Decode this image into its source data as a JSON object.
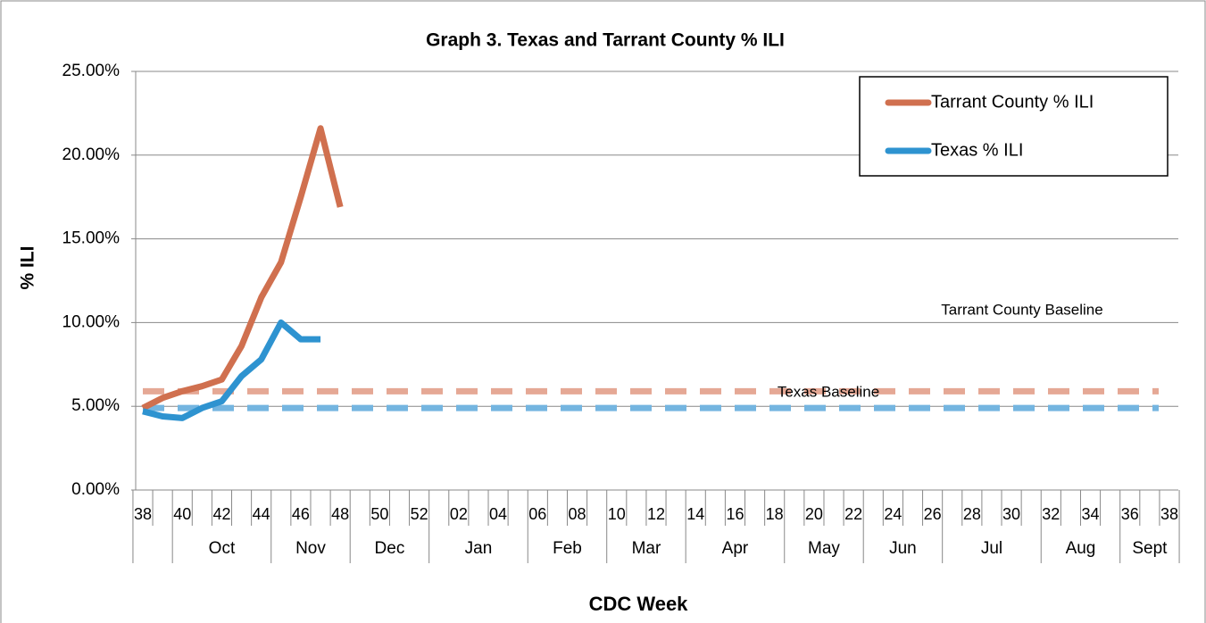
{
  "chart_data": {
    "type": "line",
    "title": "Graph 3. Texas and Tarrant County % ILI",
    "y_label": "% ILI",
    "x_label": "CDC Week",
    "categories": [
      "38",
      null,
      "40",
      null,
      "42",
      null,
      "44",
      null,
      "46",
      null,
      "48",
      null,
      "50",
      null,
      "52",
      null,
      "02",
      null,
      "04",
      null,
      "06",
      null,
      "08",
      null,
      "10",
      null,
      "12",
      null,
      "14",
      null,
      "16",
      null,
      "18",
      null,
      "20",
      null,
      "22",
      null,
      "24",
      null,
      "26",
      null,
      "28",
      null,
      "30",
      null,
      "32",
      null,
      "34",
      null,
      "36",
      null,
      "38"
    ],
    "months": [
      "Oct",
      "Nov",
      "Dec",
      "Jan",
      "Feb",
      "Mar",
      "Apr",
      "May",
      "Jun",
      "Jul",
      "Aug",
      "Sept"
    ],
    "series": [
      {
        "name": "Tarrant County % ILI",
        "color": "#d0704f",
        "values": [
          4.9,
          5.5,
          5.9,
          6.2,
          6.6,
          8.6,
          11.5,
          13.6,
          17.5,
          21.6,
          16.9,
          null,
          null,
          null,
          null,
          null,
          null,
          null,
          null,
          null,
          null,
          null,
          null,
          null,
          null,
          null,
          null,
          null,
          null,
          null,
          null,
          null,
          null,
          null,
          null,
          null,
          null,
          null,
          null,
          null,
          null,
          null,
          null,
          null,
          null,
          null,
          null,
          null,
          null,
          null,
          null,
          null,
          null
        ]
      },
      {
        "name": "Texas % ILI",
        "color": "#2e93d0",
        "values": [
          4.7,
          4.4,
          4.3,
          4.9,
          5.3,
          6.8,
          7.8,
          10.0,
          9.0,
          9.0,
          null,
          null,
          null,
          null,
          null,
          null,
          null,
          null,
          null,
          null,
          null,
          null,
          null,
          null,
          null,
          null,
          null,
          null,
          null,
          null,
          null,
          null,
          null,
          null,
          null,
          null,
          null,
          null,
          null,
          null,
          null,
          null,
          null,
          null,
          null,
          null,
          null,
          null,
          null,
          null,
          null,
          null,
          null
        ]
      }
    ],
    "baselines": [
      {
        "label": "Tarrant County Baseline",
        "value": 5.9,
        "color": "#e5a895"
      },
      {
        "label": "Texas Baseline",
        "value": 4.9,
        "color": "#74b5e0"
      }
    ],
    "ylim": [
      0,
      25
    ],
    "yticks": [
      {
        "value": 0,
        "label": "0.00%"
      },
      {
        "value": 5,
        "label": "5.00%"
      },
      {
        "value": 10,
        "label": "10.00%"
      },
      {
        "value": 15,
        "label": "15.00%"
      },
      {
        "value": 20,
        "label": "20.00%"
      },
      {
        "value": 25,
        "label": "25.00%"
      }
    ],
    "grid": true,
    "legend": "upper right"
  }
}
